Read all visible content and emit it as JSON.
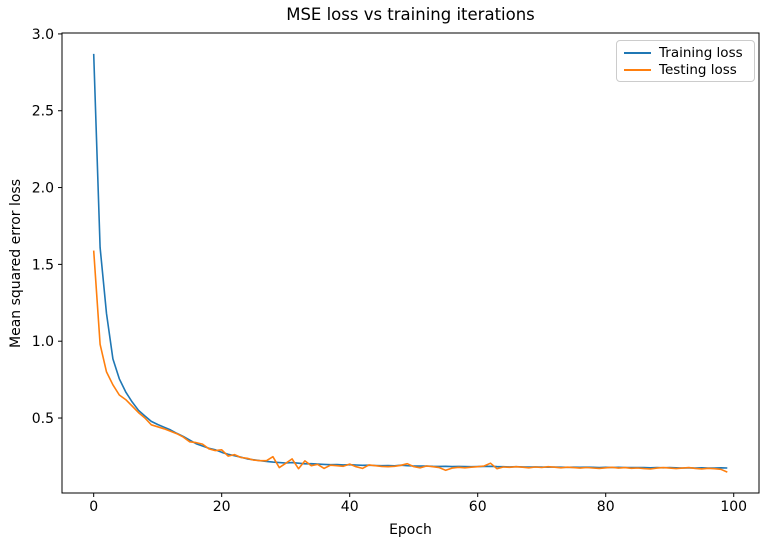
{
  "figure": {
    "background": "#ffffff",
    "spine_color": "#000000"
  },
  "chart_data": {
    "type": "line",
    "title": "MSE loss vs training iterations",
    "xlabel": "Epoch",
    "ylabel": "Mean squared error loss",
    "x_ticks": [
      0,
      20,
      40,
      60,
      80,
      100
    ],
    "y_ticks": [
      0.5,
      1.0,
      1.5,
      2.0,
      2.5,
      3.0
    ],
    "xlim": [
      -4.95,
      103.95
    ],
    "ylim": [
      0.012,
      3.006
    ],
    "grid": false,
    "legend_position": "upper right",
    "x": [
      0,
      1,
      2,
      3,
      4,
      5,
      6,
      7,
      8,
      9,
      10,
      11,
      12,
      13,
      14,
      15,
      16,
      17,
      18,
      19,
      20,
      21,
      22,
      23,
      24,
      25,
      26,
      27,
      28,
      29,
      30,
      31,
      32,
      33,
      34,
      35,
      36,
      37,
      38,
      39,
      40,
      41,
      42,
      43,
      44,
      45,
      46,
      47,
      48,
      49,
      50,
      51,
      52,
      53,
      54,
      55,
      56,
      57,
      58,
      59,
      60,
      61,
      62,
      63,
      64,
      65,
      66,
      67,
      68,
      69,
      70,
      71,
      72,
      73,
      74,
      75,
      76,
      77,
      78,
      79,
      80,
      81,
      82,
      83,
      84,
      85,
      86,
      87,
      88,
      89,
      90,
      91,
      92,
      93,
      94,
      95,
      96,
      97,
      98,
      99
    ],
    "series": [
      {
        "name": "Training loss",
        "color": "#1f77b4",
        "values": [
          2.87,
          1.61,
          1.18,
          0.885,
          0.755,
          0.67,
          0.605,
          0.55,
          0.513,
          0.478,
          0.458,
          0.44,
          0.423,
          0.4,
          0.38,
          0.356,
          0.333,
          0.318,
          0.303,
          0.293,
          0.277,
          0.264,
          0.255,
          0.245,
          0.234,
          0.228,
          0.222,
          0.218,
          0.213,
          0.21,
          0.207,
          0.21,
          0.206,
          0.202,
          0.203,
          0.2,
          0.198,
          0.196,
          0.197,
          0.195,
          0.196,
          0.194,
          0.192,
          0.193,
          0.191,
          0.19,
          0.191,
          0.189,
          0.193,
          0.19,
          0.188,
          0.187,
          0.188,
          0.186,
          0.185,
          0.186,
          0.184,
          0.185,
          0.184,
          0.183,
          0.184,
          0.185,
          0.186,
          0.184,
          0.183,
          0.182,
          0.183,
          0.182,
          0.181,
          0.182,
          0.181,
          0.18,
          0.181,
          0.18,
          0.179,
          0.18,
          0.179,
          0.18,
          0.179,
          0.178,
          0.179,
          0.178,
          0.179,
          0.178,
          0.177,
          0.178,
          0.177,
          0.176,
          0.177,
          0.176,
          0.177,
          0.176,
          0.175,
          0.176,
          0.175,
          0.176,
          0.175,
          0.174,
          0.176,
          0.175
        ]
      },
      {
        "name": "Testing loss",
        "color": "#ff7f0e",
        "values": [
          1.59,
          0.98,
          0.8,
          0.716,
          0.65,
          0.62,
          0.578,
          0.535,
          0.5,
          0.456,
          0.443,
          0.43,
          0.414,
          0.398,
          0.376,
          0.345,
          0.34,
          0.33,
          0.3,
          0.288,
          0.293,
          0.252,
          0.262,
          0.243,
          0.238,
          0.226,
          0.222,
          0.222,
          0.248,
          0.177,
          0.205,
          0.234,
          0.17,
          0.221,
          0.19,
          0.198,
          0.172,
          0.193,
          0.19,
          0.186,
          0.2,
          0.183,
          0.172,
          0.195,
          0.19,
          0.185,
          0.183,
          0.186,
          0.192,
          0.203,
          0.184,
          0.176,
          0.188,
          0.183,
          0.177,
          0.16,
          0.174,
          0.179,
          0.176,
          0.18,
          0.183,
          0.188,
          0.206,
          0.17,
          0.181,
          0.179,
          0.183,
          0.18,
          0.176,
          0.181,
          0.178,
          0.183,
          0.18,
          0.176,
          0.18,
          0.177,
          0.174,
          0.178,
          0.175,
          0.172,
          0.176,
          0.179,
          0.174,
          0.177,
          0.173,
          0.175,
          0.171,
          0.168,
          0.174,
          0.177,
          0.174,
          0.171,
          0.174,
          0.177,
          0.172,
          0.169,
          0.173,
          0.17,
          0.166,
          0.148
        ]
      }
    ]
  }
}
